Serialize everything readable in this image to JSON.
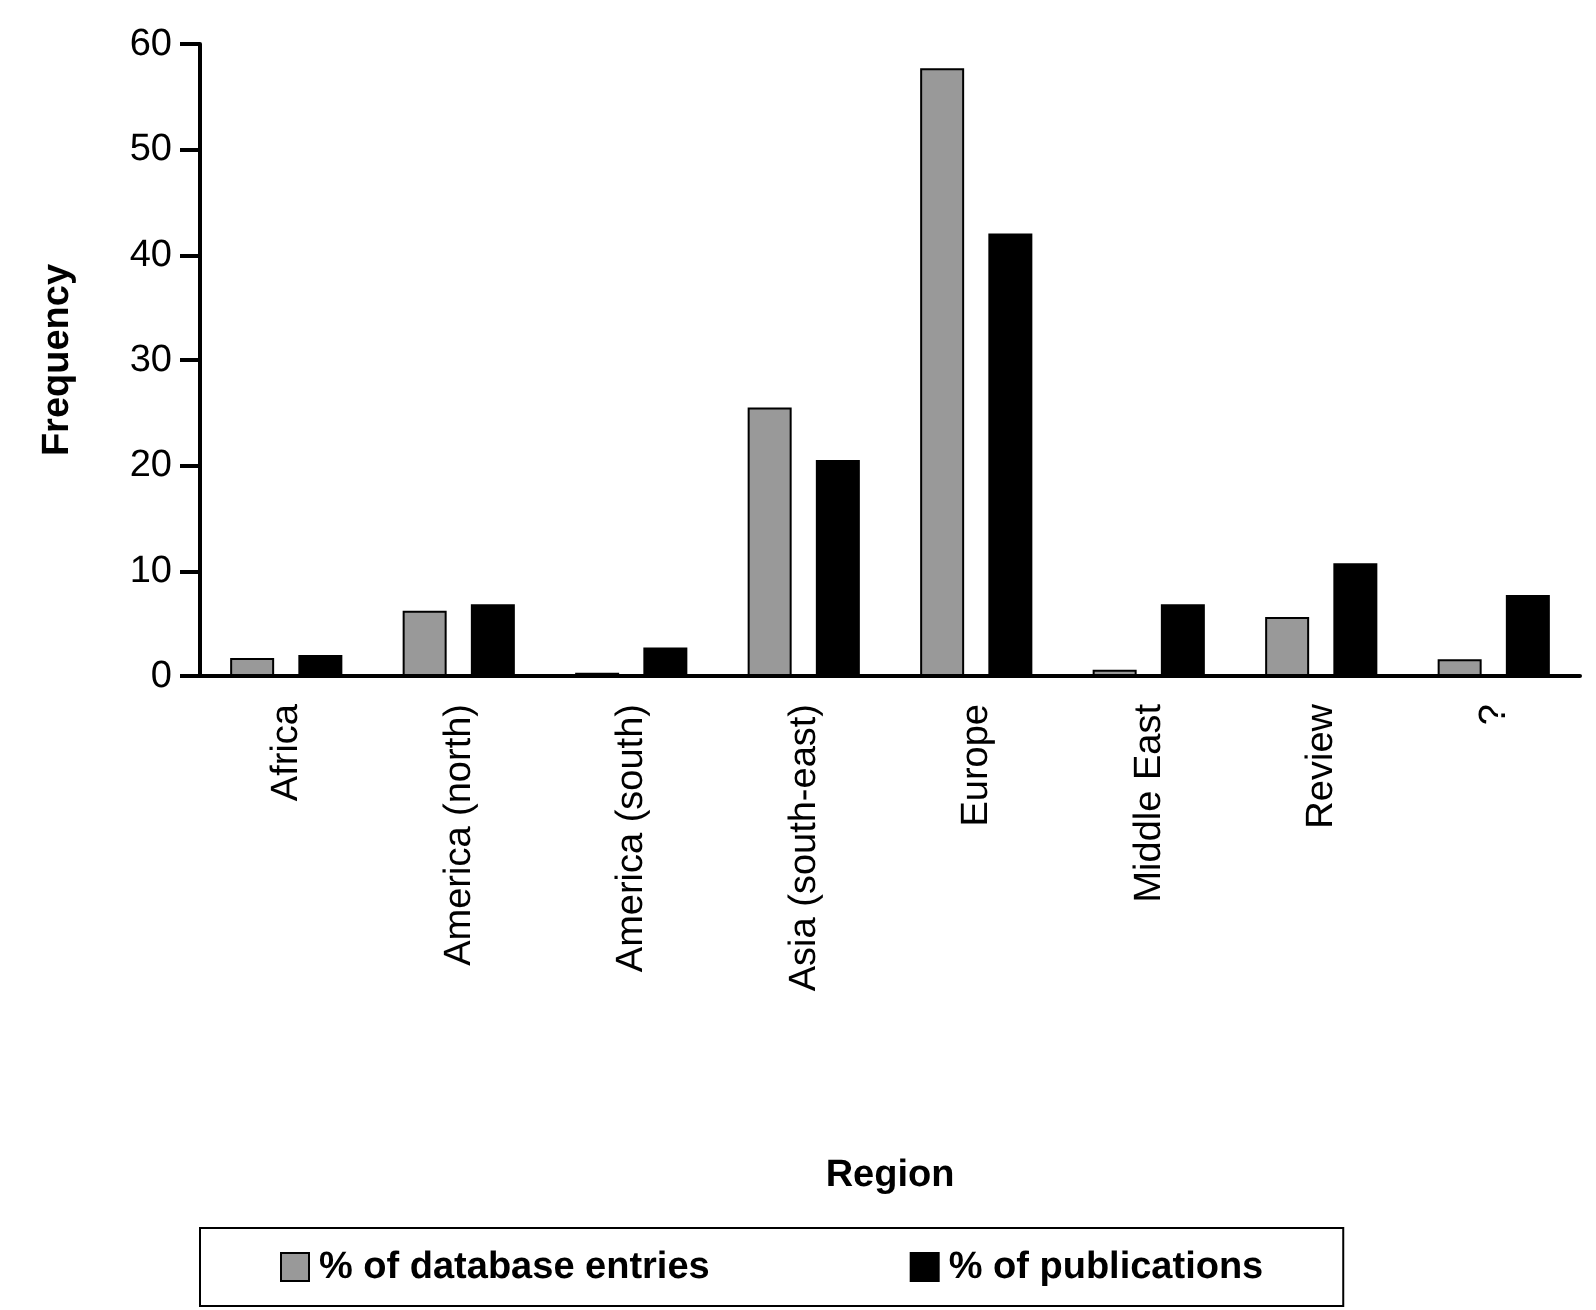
{
  "chart_data": {
    "type": "bar",
    "xlabel": "Region",
    "ylabel": "Frequency",
    "categories": [
      "Africa",
      "America (north)",
      "America (south)",
      "Asia (south-east)",
      "Europe",
      "Middle East",
      "Review",
      "?"
    ],
    "series": [
      {
        "name": "% of database entries",
        "color": "#999999",
        "values": [
          1.7,
          6.2,
          0.3,
          25.5,
          57.7,
          0.6,
          5.6,
          1.6
        ]
      },
      {
        "name": "% of publications",
        "color": "#000000",
        "values": [
          2.0,
          6.8,
          2.7,
          20.5,
          42.0,
          6.8,
          10.7,
          7.7
        ]
      }
    ],
    "ylim": [
      0,
      60
    ],
    "yticks": [
      0,
      10,
      20,
      30,
      40,
      50,
      60
    ],
    "grid": false,
    "legend": "bottom"
  }
}
